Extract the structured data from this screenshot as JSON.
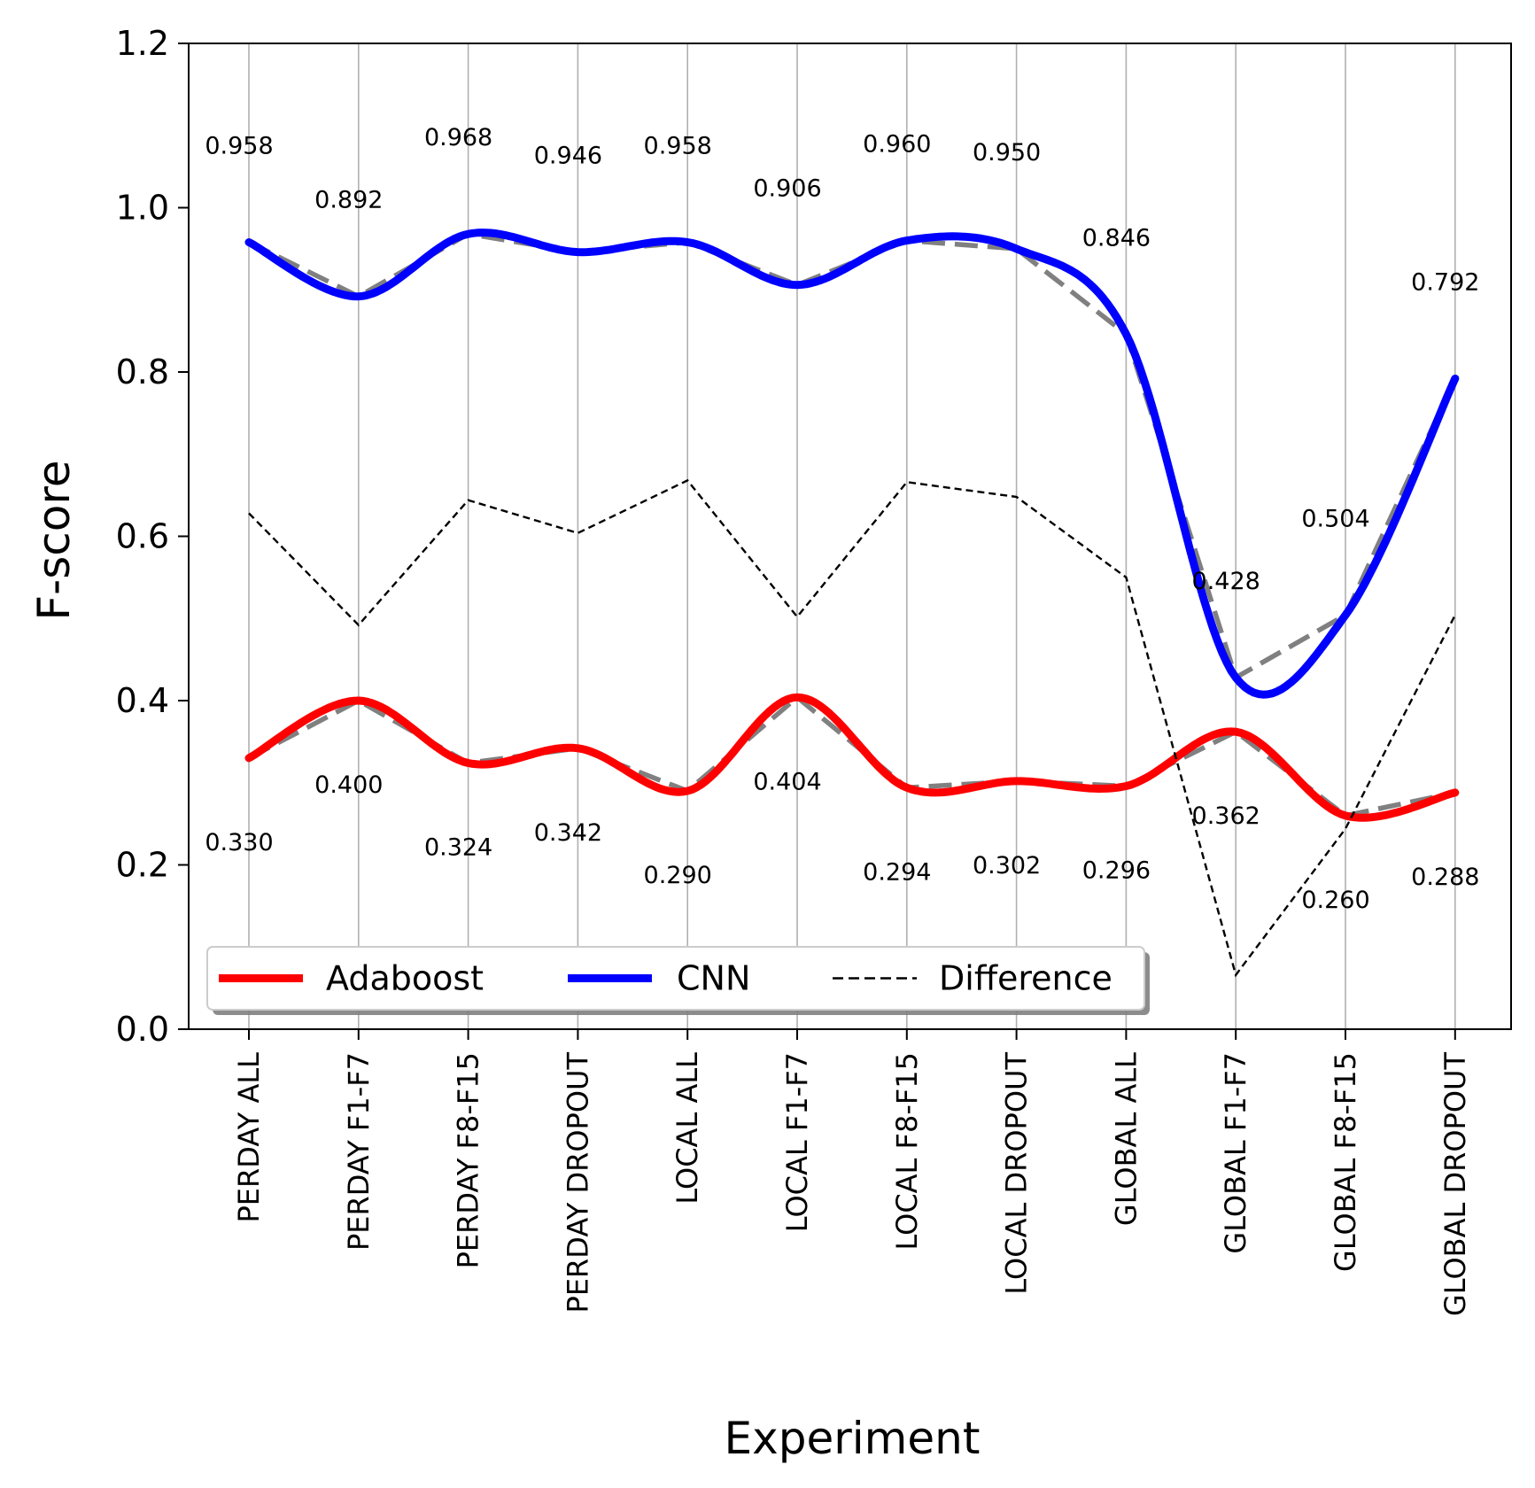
{
  "chart_data": {
    "type": "line",
    "xlabel": "Experiment",
    "ylabel": "F-score",
    "ylim": [
      0.0,
      1.2
    ],
    "yticks": [
      "0.0",
      "0.2",
      "0.4",
      "0.6",
      "0.8",
      "1.0",
      "1.2"
    ],
    "ytick_values": [
      0.0,
      0.2,
      0.4,
      0.6,
      0.8,
      1.0,
      1.2
    ],
    "grid": "vertical",
    "legend_position": "lower-left",
    "categories": [
      "PERDAY ALL",
      "PERDAY F1-F7",
      "PERDAY F8-F15",
      "PERDAY DROPOUT",
      "LOCAL ALL",
      "LOCAL F1-F7",
      "LOCAL F8-F15",
      "LOCAL DROPOUT",
      "GLOBAL ALL",
      "GLOBAL F1-F7",
      "GLOBAL F8-F15",
      "GLOBAL DROPOUT"
    ],
    "series": [
      {
        "name": "Adaboost",
        "color": "#ff0000",
        "style": "smooth",
        "values": [
          0.33,
          0.4,
          0.324,
          0.342,
          0.29,
          0.404,
          0.294,
          0.302,
          0.296,
          0.362,
          0.26,
          0.288
        ],
        "labels": [
          "0.330",
          "0.400",
          "0.324",
          "0.342",
          "0.290",
          "0.404",
          "0.294",
          "0.302",
          "0.296",
          "0.362",
          "0.260",
          "0.288"
        ]
      },
      {
        "name": "CNN",
        "color": "#0000ff",
        "style": "smooth",
        "values": [
          0.958,
          0.892,
          0.968,
          0.946,
          0.958,
          0.906,
          0.96,
          0.95,
          0.846,
          0.428,
          0.504,
          0.792
        ],
        "labels": [
          "0.958",
          "0.892",
          "0.968",
          "0.946",
          "0.958",
          "0.906",
          "0.960",
          "0.950",
          "0.846",
          "0.428",
          "0.504",
          "0.792"
        ]
      },
      {
        "name": "Difference",
        "color": "#000000",
        "style": "dashed",
        "values": [
          0.628,
          0.492,
          0.644,
          0.604,
          0.668,
          0.502,
          0.666,
          0.648,
          0.55,
          0.066,
          0.244,
          0.504
        ]
      }
    ],
    "reference_color": "#808080"
  }
}
